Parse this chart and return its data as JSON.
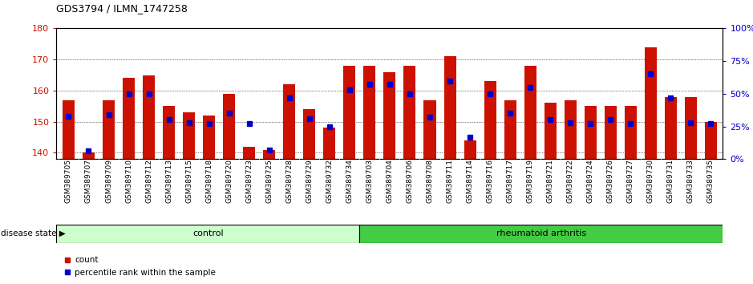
{
  "title": "GDS3794 / ILMN_1747258",
  "samples": [
    "GSM389705",
    "GSM389707",
    "GSM389709",
    "GSM389710",
    "GSM389712",
    "GSM389713",
    "GSM389715",
    "GSM389718",
    "GSM389720",
    "GSM389723",
    "GSM389725",
    "GSM389728",
    "GSM389729",
    "GSM389732",
    "GSM389734",
    "GSM389703",
    "GSM389704",
    "GSM389706",
    "GSM389708",
    "GSM389711",
    "GSM389714",
    "GSM389716",
    "GSM389717",
    "GSM389719",
    "GSM389721",
    "GSM389722",
    "GSM389724",
    "GSM389726",
    "GSM389727",
    "GSM389730",
    "GSM389731",
    "GSM389733",
    "GSM389735"
  ],
  "counts": [
    157,
    140,
    157,
    164,
    165,
    155,
    153,
    152,
    159,
    142,
    141,
    162,
    154,
    148,
    168,
    168,
    166,
    168,
    157,
    171,
    144,
    163,
    157,
    168,
    156,
    157,
    155,
    155,
    155,
    174,
    158,
    158,
    150
  ],
  "percentiles": [
    33,
    6,
    34,
    50,
    50,
    30,
    28,
    27,
    35,
    27,
    7,
    47,
    31,
    25,
    53,
    57,
    57,
    50,
    32,
    60,
    17,
    50,
    35,
    55,
    30,
    28,
    27,
    30,
    27,
    65,
    47,
    28,
    27
  ],
  "n_control": 15,
  "control_label": "control",
  "disease_label": "rheumatoid arthritis",
  "disease_state_label": "disease state",
  "ylim_left": [
    138,
    180
  ],
  "yticks_left": [
    140,
    150,
    160,
    170,
    180
  ],
  "ylim_right": [
    0,
    100
  ],
  "yticks_right": [
    0,
    25,
    50,
    75,
    100
  ],
  "bar_color": "#cc1100",
  "percentile_color": "#0000cc",
  "control_bg": "#ccffcc",
  "disease_bg": "#44cc44",
  "tick_label_color_left": "#cc1100",
  "tick_label_color_right": "#0000cc",
  "legend_count_color": "#cc1100",
  "legend_percentile_color": "#0000cc",
  "background_color": "#ffffff",
  "plot_bg": "#ffffff"
}
